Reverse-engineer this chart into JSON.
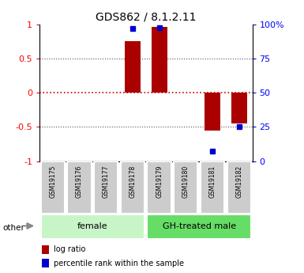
{
  "title": "GDS862 / 8.1.2.11",
  "samples": [
    "GSM19175",
    "GSM19176",
    "GSM19177",
    "GSM19178",
    "GSM19179",
    "GSM19180",
    "GSM19181",
    "GSM19182"
  ],
  "log_ratio": [
    0,
    0,
    0,
    0.76,
    0.97,
    0,
    -0.55,
    -0.45
  ],
  "percentile_rank": [
    null,
    null,
    null,
    97,
    98,
    null,
    7,
    25
  ],
  "groups": [
    {
      "label": "female",
      "start": 0,
      "end": 3,
      "color": "#c8f5c8"
    },
    {
      "label": "GH-treated male",
      "start": 4,
      "end": 7,
      "color": "#66dd66"
    }
  ],
  "bar_color": "#aa0000",
  "dot_color": "#0000cc",
  "ylim_left": [
    -1,
    1
  ],
  "ylim_right": [
    0,
    100
  ],
  "yticks_left": [
    -1,
    -0.5,
    0,
    0.5,
    1
  ],
  "yticks_right": [
    0,
    25,
    50,
    75,
    100
  ],
  "ytick_labels_right": [
    "0",
    "25",
    "50",
    "75",
    "100%"
  ],
  "hline_color": "#cc0000",
  "dotted_color": "#555555",
  "bar_width": 0.6,
  "legend_log_ratio": "log ratio",
  "legend_percentile": "percentile rank within the sample",
  "other_label": "other",
  "background_color": "#ffffff",
  "sample_box_color": "#cccccc"
}
